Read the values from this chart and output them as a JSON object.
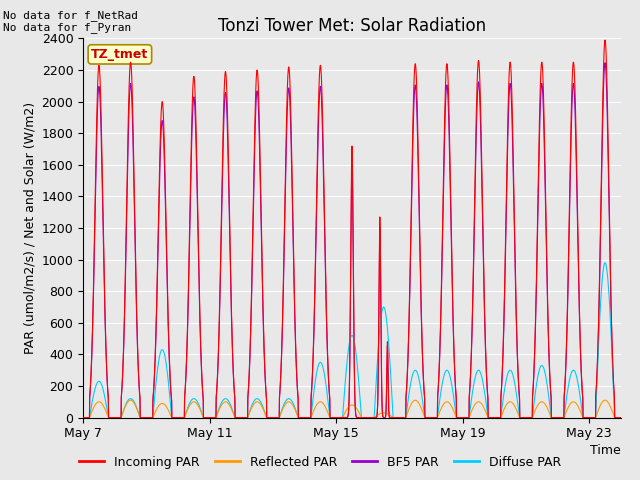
{
  "title": "Tonzi Tower Met: Solar Radiation",
  "ylabel": "PAR (umol/m2/s) / Net and Solar (W/m2)",
  "xlabel": "Time",
  "ylim": [
    0,
    2400
  ],
  "yticks": [
    0,
    200,
    400,
    600,
    800,
    1000,
    1200,
    1400,
    1600,
    1800,
    2000,
    2200,
    2400
  ],
  "x_tick_days": [
    7,
    11,
    15,
    19,
    23
  ],
  "x_tick_labels": [
    "May 7",
    "May 11",
    "May 15",
    "May 19",
    "May 23"
  ],
  "n_days": 17,
  "fig_bg_color": "#e8e8e8",
  "plot_bg_color": "#e8e8e8",
  "grid_color": "#ffffff",
  "annotation_text": "No data for f_NetRad\nNo data for f_Pyran",
  "label_box_text": "TZ_tmet",
  "label_box_color": "#ffffcc",
  "label_box_edge": "#aa8800",
  "incoming_color": "#ff0000",
  "reflected_color": "#ff9900",
  "bf5_color": "#9900cc",
  "diffuse_color": "#00ccff",
  "legend_labels": [
    "Incoming PAR",
    "Reflected PAR",
    "BF5 PAR",
    "Diffuse PAR"
  ],
  "title_fontsize": 12,
  "axis_fontsize": 9,
  "legend_fontsize": 9,
  "par_peaks": [
    2230,
    2250,
    2000,
    2160,
    2190,
    2200,
    2220,
    2230,
    1720,
    1270,
    2240,
    2240,
    2260,
    2250,
    2250,
    2250,
    2390
  ],
  "diffuse_peaks": [
    230,
    120,
    430,
    120,
    120,
    120,
    120,
    350,
    520,
    700,
    300,
    300,
    300,
    300,
    330,
    300,
    980
  ],
  "reflected_peaks": [
    100,
    110,
    90,
    100,
    100,
    100,
    100,
    100,
    80,
    60,
    110,
    100,
    100,
    100,
    100,
    100,
    110
  ],
  "cloudy_days": [
    8,
    9
  ],
  "points_per_day": 288
}
